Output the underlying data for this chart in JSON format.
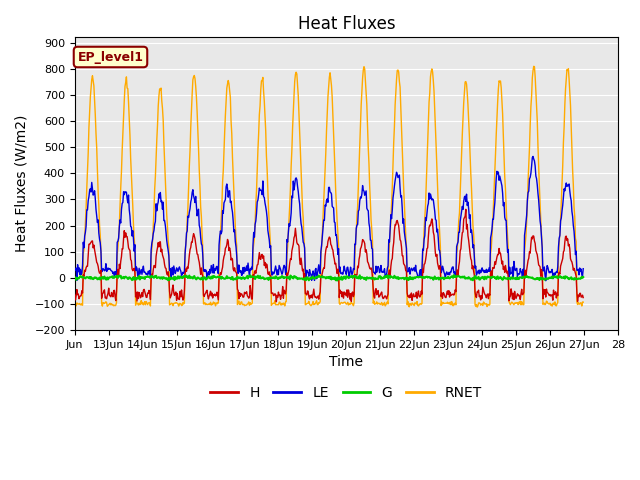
{
  "title": "Heat Fluxes",
  "xlabel": "Time",
  "ylabel": "Heat Fluxes (W/m2)",
  "ylim": [
    -200,
    920
  ],
  "yticks": [
    -200,
    -100,
    0,
    100,
    200,
    300,
    400,
    500,
    600,
    700,
    800,
    900
  ],
  "annotation": "EP_level1",
  "legend_labels": [
    "H",
    "LE",
    "G",
    "RNET"
  ],
  "colors": {
    "H": "#cc0000",
    "LE": "#0000dd",
    "G": "#00cc00",
    "RNET": "#ffaa00",
    "background": "#e8e8e8",
    "annotation_bg": "#ffffcc",
    "annotation_border": "#cc0000"
  },
  "x_start": 12.0,
  "x_end": 28.0,
  "x_tick_positions": [
    12.0,
    13,
    14,
    15,
    16,
    17,
    18,
    19,
    20,
    21,
    22,
    23,
    24,
    25,
    26,
    27,
    28
  ],
  "x_tick_labels": [
    "Jun",
    "13Jun",
    "14Jun",
    "15Jun",
    "16Jun",
    "17Jun",
    "18Jun",
    "19Jun",
    "20Jun",
    "21Jun",
    "22Jun",
    "23Jun",
    "24Jun",
    "25Jun",
    "26Jun",
    "27Jun",
    "28"
  ],
  "figsize": [
    6.4,
    4.8
  ],
  "dpi": 100
}
